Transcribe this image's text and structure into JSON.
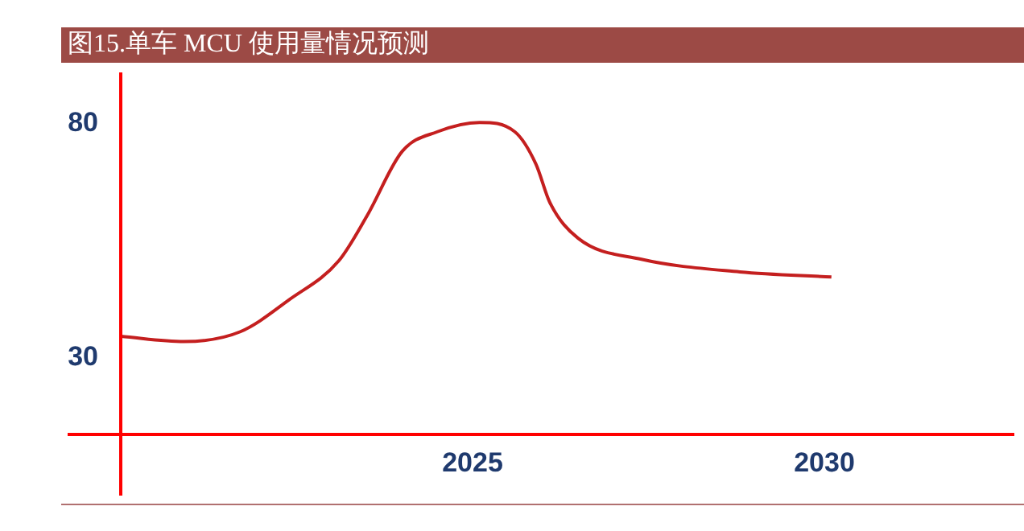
{
  "chart_data": {
    "type": "line",
    "title": "图15.单车 MCU 使用量情况预测",
    "x": [
      2020,
      2020.9,
      2021.7,
      2022.4,
      2023.1,
      2023.5,
      2024,
      2024.5,
      2025.1,
      2025.6,
      2025.9,
      2026.1,
      2026.5,
      2027.4,
      2028.8,
      2030.1
    ],
    "series": [
      {
        "color": "#c41f1f",
        "values": [
          34.5,
          33.4,
          35.5,
          42.4,
          50.7,
          60.3,
          74.1,
          78.3,
          80.3,
          78.3,
          71.4,
          63.1,
          55.5,
          51.0,
          48.3,
          47.2
        ]
      }
    ],
    "xlim": [
      2020,
      2032.7
    ],
    "xticks": [
      2025,
      2030
    ],
    "ylim": [
      13.5,
      91
    ],
    "yticks": [
      80,
      30
    ],
    "grid": false,
    "legend": false
  }
}
